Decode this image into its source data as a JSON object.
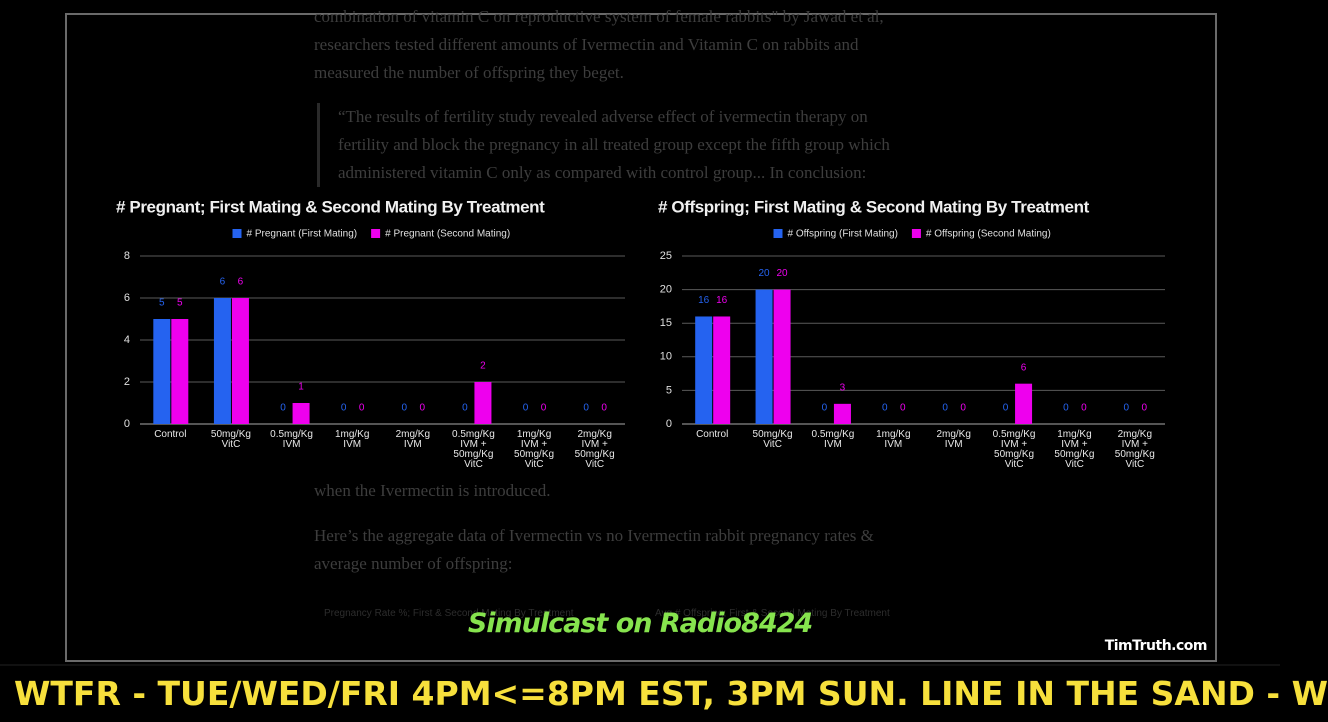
{
  "article": {
    "lines": [
      "combination of vitamin C on reproductive system of female rabbits\" by Jawad et al,",
      "researchers tested different amounts of Ivermectin and Vitamin C on rabbits and",
      "measured the number of offspring they beget."
    ],
    "quote": [
      "“The results of fertility study revealed adverse effect of ivermectin therapy on",
      "fertility and block the pregnancy in all treated group except the fifth group which",
      "administered vitamin C only as compared with control group... In conclusion:"
    ],
    "after": [
      "when the Ivermectin is introduced.",
      "Here’s the aggregate data of Ivermectin vs no Ivermectin rabbit pregnancy rates &",
      "average number of offspring:"
    ],
    "faint_titles": [
      "Pregnancy Rate %; First & Second Mating By Treatment",
      "Avg # Offspring; First & Second Mating By Treatment"
    ]
  },
  "chart_data": [
    {
      "type": "bar",
      "title": "# Pregnant; First Mating & Second Mating By Treatment",
      "categories": [
        "Control",
        "50mg/Kg VitC",
        "0.5mg/Kg IVM",
        "1mg/Kg IVM",
        "2mg/Kg IVM",
        "0.5mg/Kg IVM + 50mg/Kg VitC",
        "1mg/Kg IVM + 50mg/Kg VitC",
        "2mg/Kg IVM + 50mg/Kg VitC"
      ],
      "series": [
        {
          "name": "# Pregnant (First Mating)",
          "color": "#2563f0",
          "values": [
            5,
            6,
            0,
            0,
            0,
            0,
            0,
            0
          ]
        },
        {
          "name": "# Pregnant (Second Mating)",
          "color": "#ee00ee",
          "values": [
            5,
            6,
            1,
            0,
            0,
            2,
            0,
            0
          ]
        }
      ],
      "ylim": [
        0,
        8
      ],
      "yticks": [
        0,
        2,
        4,
        6,
        8
      ],
      "grid": true,
      "legend": "top"
    },
    {
      "type": "bar",
      "title": "# Offspring; First Mating & Second Mating By Treatment",
      "categories": [
        "Control",
        "50mg/Kg VitC",
        "0.5mg/Kg IVM",
        "1mg/Kg IVM",
        "2mg/Kg IVM",
        "0.5mg/Kg IVM + 50mg/Kg VitC",
        "1mg/Kg IVM + 50mg/Kg VitC",
        "2mg/Kg IVM + 50mg/Kg VitC"
      ],
      "series": [
        {
          "name": "# Offspring (First Mating)",
          "color": "#2563f0",
          "values": [
            16,
            20,
            0,
            0,
            0,
            0,
            0,
            0
          ]
        },
        {
          "name": "# Offspring (Second Mating)",
          "color": "#ee00ee",
          "values": [
            16,
            20,
            3,
            0,
            0,
            6,
            0,
            0
          ]
        }
      ],
      "ylim": [
        0,
        25
      ],
      "yticks": [
        0,
        5,
        10,
        15,
        20,
        25
      ],
      "grid": true,
      "legend": "top"
    }
  ],
  "overlay": {
    "simulcast": "Simulcast on Radio8424",
    "site": "TimTruth.com",
    "ticker": "WTFR - TUE/WED/FRI 4PM<=8PM EST, 3PM SUN. LINE IN THE SAND - W"
  }
}
